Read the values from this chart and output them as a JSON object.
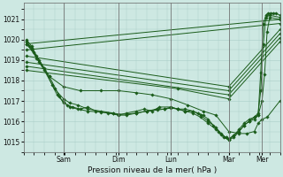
{
  "xlabel": "Pression niveau de la mer( hPa )",
  "bg_color": "#cde8e2",
  "grid_color": "#aacec8",
  "line_color": "#1a5c1a",
  "marker_color": "#1a5c1a",
  "ylim": [
    1014.5,
    1021.8
  ],
  "yticks": [
    1015,
    1016,
    1017,
    1018,
    1019,
    1020,
    1021
  ],
  "xlim": [
    0,
    1.0
  ],
  "day_positions": [
    0.155,
    0.37,
    0.575,
    0.8,
    0.93
  ],
  "day_labels": [
    "Sam",
    "Dim",
    "Lun",
    "Mar",
    "Mer"
  ],
  "series": [
    {
      "type": "detailed",
      "points": [
        [
          0.01,
          1019.9
        ],
        [
          0.02,
          1019.7
        ],
        [
          0.04,
          1019.4
        ],
        [
          0.06,
          1019.0
        ],
        [
          0.1,
          1018.2
        ],
        [
          0.14,
          1017.2
        ],
        [
          0.155,
          1016.9
        ],
        [
          0.17,
          1016.8
        ],
        [
          0.19,
          1016.7
        ],
        [
          0.22,
          1016.6
        ],
        [
          0.25,
          1016.7
        ],
        [
          0.28,
          1016.5
        ],
        [
          0.33,
          1016.4
        ],
        [
          0.37,
          1016.3
        ],
        [
          0.4,
          1016.4
        ],
        [
          0.44,
          1016.5
        ],
        [
          0.47,
          1016.6
        ],
        [
          0.5,
          1016.5
        ],
        [
          0.53,
          1016.7
        ],
        [
          0.575,
          1016.7
        ],
        [
          0.6,
          1016.6
        ],
        [
          0.63,
          1016.6
        ],
        [
          0.66,
          1016.5
        ],
        [
          0.68,
          1016.4
        ],
        [
          0.7,
          1016.3
        ],
        [
          0.72,
          1016.1
        ],
        [
          0.74,
          1015.8
        ],
        [
          0.76,
          1015.5
        ],
        [
          0.78,
          1015.2
        ],
        [
          0.8,
          1015.1
        ],
        [
          0.82,
          1015.3
        ],
        [
          0.84,
          1015.6
        ],
        [
          0.86,
          1015.9
        ],
        [
          0.88,
          1016.1
        ],
        [
          0.9,
          1016.2
        ],
        [
          0.915,
          1016.3
        ],
        [
          0.925,
          1018.4
        ],
        [
          0.935,
          1020.8
        ],
        [
          0.945,
          1021.2
        ],
        [
          0.955,
          1021.3
        ],
        [
          0.965,
          1021.3
        ],
        [
          0.975,
          1021.3
        ],
        [
          0.985,
          1021.3
        ],
        [
          1.0,
          1021.2
        ]
      ]
    },
    {
      "type": "detailed",
      "points": [
        [
          0.01,
          1019.9
        ],
        [
          0.03,
          1019.6
        ],
        [
          0.05,
          1019.1
        ],
        [
          0.08,
          1018.5
        ],
        [
          0.12,
          1017.6
        ],
        [
          0.155,
          1017.1
        ],
        [
          0.18,
          1016.9
        ],
        [
          0.21,
          1016.8
        ],
        [
          0.25,
          1016.6
        ],
        [
          0.3,
          1016.5
        ],
        [
          0.35,
          1016.4
        ],
        [
          0.37,
          1016.3
        ],
        [
          0.4,
          1016.3
        ],
        [
          0.44,
          1016.4
        ],
        [
          0.48,
          1016.5
        ],
        [
          0.52,
          1016.6
        ],
        [
          0.55,
          1016.6
        ],
        [
          0.575,
          1016.7
        ],
        [
          0.6,
          1016.6
        ],
        [
          0.63,
          1016.5
        ],
        [
          0.66,
          1016.5
        ],
        [
          0.69,
          1016.3
        ],
        [
          0.72,
          1016.0
        ],
        [
          0.75,
          1015.7
        ],
        [
          0.77,
          1015.4
        ],
        [
          0.79,
          1015.2
        ],
        [
          0.8,
          1015.1
        ],
        [
          0.82,
          1015.2
        ],
        [
          0.84,
          1015.5
        ],
        [
          0.86,
          1015.8
        ],
        [
          0.88,
          1016.0
        ],
        [
          0.9,
          1016.2
        ],
        [
          0.915,
          1016.4
        ],
        [
          0.925,
          1017.5
        ],
        [
          0.935,
          1019.8
        ],
        [
          0.945,
          1021.1
        ],
        [
          0.96,
          1021.2
        ],
        [
          1.0,
          1021.1
        ]
      ]
    },
    {
      "type": "detailed",
      "points": [
        [
          0.01,
          1020.0
        ],
        [
          0.03,
          1019.7
        ],
        [
          0.05,
          1019.2
        ],
        [
          0.08,
          1018.6
        ],
        [
          0.11,
          1017.8
        ],
        [
          0.13,
          1017.3
        ],
        [
          0.155,
          1016.95
        ],
        [
          0.18,
          1016.7
        ],
        [
          0.21,
          1016.6
        ],
        [
          0.25,
          1016.5
        ],
        [
          0.3,
          1016.45
        ],
        [
          0.35,
          1016.4
        ],
        [
          0.37,
          1016.35
        ],
        [
          0.4,
          1016.35
        ],
        [
          0.44,
          1016.4
        ],
        [
          0.48,
          1016.5
        ],
        [
          0.52,
          1016.55
        ],
        [
          0.55,
          1016.6
        ],
        [
          0.575,
          1016.65
        ],
        [
          0.6,
          1016.6
        ],
        [
          0.63,
          1016.5
        ],
        [
          0.66,
          1016.4
        ],
        [
          0.69,
          1016.2
        ],
        [
          0.72,
          1015.9
        ],
        [
          0.75,
          1015.6
        ],
        [
          0.77,
          1015.35
        ],
        [
          0.79,
          1015.2
        ],
        [
          0.8,
          1015.15
        ],
        [
          0.82,
          1015.3
        ],
        [
          0.84,
          1015.5
        ],
        [
          0.86,
          1015.8
        ],
        [
          0.88,
          1016.0
        ],
        [
          0.9,
          1016.1
        ],
        [
          0.915,
          1016.3
        ],
        [
          0.93,
          1017.0
        ],
        [
          0.94,
          1018.3
        ],
        [
          0.95,
          1020.4
        ],
        [
          0.96,
          1021.1
        ],
        [
          1.0,
          1021.0
        ]
      ]
    },
    {
      "type": "straight",
      "points": [
        [
          0.01,
          1019.8
        ],
        [
          1.0,
          1021.0
        ]
      ]
    },
    {
      "type": "straight",
      "points": [
        [
          0.01,
          1019.5
        ],
        [
          1.0,
          1020.8
        ]
      ]
    },
    {
      "type": "straight",
      "points": [
        [
          0.01,
          1019.2
        ],
        [
          0.8,
          1017.7
        ],
        [
          1.0,
          1020.5
        ]
      ]
    },
    {
      "type": "straight",
      "points": [
        [
          0.01,
          1018.9
        ],
        [
          0.8,
          1017.5
        ],
        [
          1.0,
          1020.3
        ]
      ]
    },
    {
      "type": "straight",
      "points": [
        [
          0.01,
          1018.7
        ],
        [
          0.8,
          1017.3
        ],
        [
          1.0,
          1020.1
        ]
      ]
    },
    {
      "type": "straight",
      "points": [
        [
          0.01,
          1018.5
        ],
        [
          0.6,
          1017.6
        ],
        [
          0.8,
          1017.1
        ],
        [
          1.0,
          1019.9
        ]
      ]
    },
    {
      "type": "semi",
      "points": [
        [
          0.01,
          1019.8
        ],
        [
          0.03,
          1019.5
        ],
        [
          0.06,
          1018.9
        ],
        [
          0.1,
          1018.2
        ],
        [
          0.155,
          1017.7
        ],
        [
          0.22,
          1017.5
        ],
        [
          0.3,
          1017.5
        ],
        [
          0.37,
          1017.5
        ],
        [
          0.44,
          1017.4
        ],
        [
          0.5,
          1017.3
        ],
        [
          0.575,
          1017.1
        ],
        [
          0.64,
          1016.8
        ],
        [
          0.7,
          1016.5
        ],
        [
          0.75,
          1016.3
        ],
        [
          0.8,
          1015.5
        ],
        [
          0.84,
          1015.4
        ],
        [
          0.87,
          1015.4
        ],
        [
          0.9,
          1015.5
        ],
        [
          0.915,
          1015.9
        ],
        [
          0.93,
          1016.1
        ],
        [
          0.95,
          1016.2
        ],
        [
          1.0,
          1017.0
        ]
      ]
    }
  ]
}
